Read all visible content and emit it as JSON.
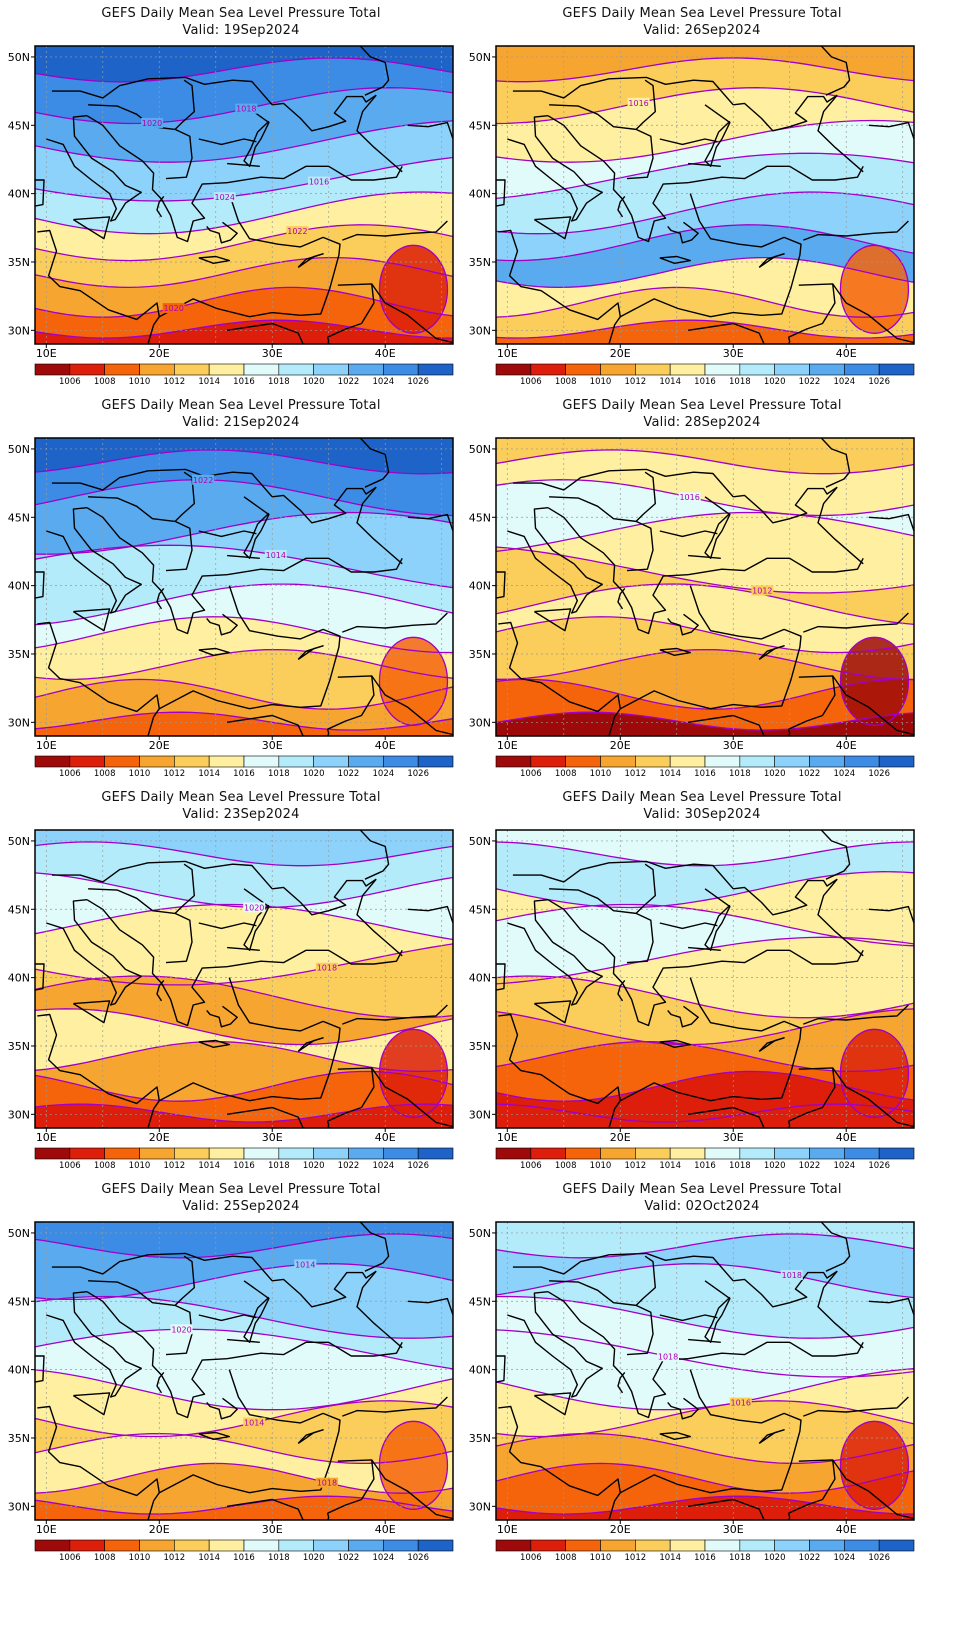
{
  "title": "GEFS Daily Mean Sea Level Pressure Total",
  "valid_prefix": "Valid:",
  "lat_labels": [
    "50N",
    "45N",
    "40N",
    "35N",
    "30N"
  ],
  "lon_labels": [
    "10E",
    "20E",
    "30E",
    "40E"
  ],
  "colorbar": {
    "labels": [
      "1006",
      "1008",
      "1010",
      "1012",
      "1014",
      "1016",
      "1018",
      "1020",
      "1022",
      "1024",
      "1026"
    ],
    "colors": [
      "#9e0a0a",
      "#dc1e0a",
      "#f5640a",
      "#f7a531",
      "#fbcd5a",
      "#fef0a0",
      "#e1fafa",
      "#b4ebfa",
      "#8cd2fa",
      "#5aaaf0",
      "#3c8ce6",
      "#1e64c8"
    ]
  },
  "contour_color": "#a000c8",
  "panels": [
    {
      "valid": "Valid: 19Sep2024",
      "palette": [
        "#1e64c8",
        "#3c8ce6",
        "#5aaaf0",
        "#8cd2fa",
        "#b4ebfa",
        "#fef0a0",
        "#fbcd5a",
        "#f7a531",
        "#f5640a",
        "#dc1e0a"
      ],
      "labels": [
        "1020",
        "1024",
        "1022",
        "1020",
        "1018",
        "1016"
      ]
    },
    {
      "valid": "Valid: 26Sep2024",
      "palette": [
        "#f7a531",
        "#fbcd5a",
        "#fef0a0",
        "#e1fafa",
        "#b4ebfa",
        "#8cd2fa",
        "#5aaaf0",
        "#fef0a0",
        "#fbcd5a",
        "#f5640a"
      ],
      "labels": [
        "1016"
      ]
    },
    {
      "valid": "Valid: 21Sep2024",
      "palette": [
        "#1e64c8",
        "#3c8ce6",
        "#5aaaf0",
        "#8cd2fa",
        "#b4ebfa",
        "#e1fafa",
        "#fef0a0",
        "#fbcd5a",
        "#f7a531",
        "#f5640a"
      ],
      "labels": [
        "1022",
        "1014"
      ]
    },
    {
      "valid": "Valid: 28Sep2024",
      "palette": [
        "#fbcd5a",
        "#fef0a0",
        "#e1fafa",
        "#fef0a0",
        "#fbcd5a",
        "#fef0a0",
        "#fbcd5a",
        "#f7a531",
        "#f5640a",
        "#9e0a0a"
      ],
      "labels": [
        "1016",
        "1012"
      ]
    },
    {
      "valid": "Valid: 23Sep2024",
      "palette": [
        "#8cd2fa",
        "#b4ebfa",
        "#e1fafa",
        "#fef0a0",
        "#fbcd5a",
        "#f7a531",
        "#fef0a0",
        "#f7a531",
        "#f5640a",
        "#dc1e0a"
      ],
      "labels": [
        "1020",
        "1018"
      ]
    },
    {
      "valid": "Valid: 30Sep2024",
      "palette": [
        "#e1fafa",
        "#b4ebfa",
        "#fef0a0",
        "#e1fafa",
        "#fef0a0",
        "#fbcd5a",
        "#f7a531",
        "#f5640a",
        "#dc1e0a",
        "#dc1e0a"
      ],
      "labels": []
    },
    {
      "valid": "Valid: 25Sep2024",
      "palette": [
        "#3c8ce6",
        "#5aaaf0",
        "#8cd2fa",
        "#b4ebfa",
        "#e1fafa",
        "#fef0a0",
        "#fbcd5a",
        "#fef0a0",
        "#f7a531",
        "#f5640a"
      ],
      "labels": [
        "1014",
        "1020",
        "1014",
        "1018"
      ]
    },
    {
      "valid": "Valid: 02Oct2024",
      "palette": [
        "#b4ebfa",
        "#8cd2fa",
        "#b4ebfa",
        "#e1fafa",
        "#e1fafa",
        "#fef0a0",
        "#fbcd5a",
        "#f7a531",
        "#f5640a",
        "#dc1e0a"
      ],
      "labels": [
        "1018",
        "1018",
        "1016"
      ]
    }
  ]
}
